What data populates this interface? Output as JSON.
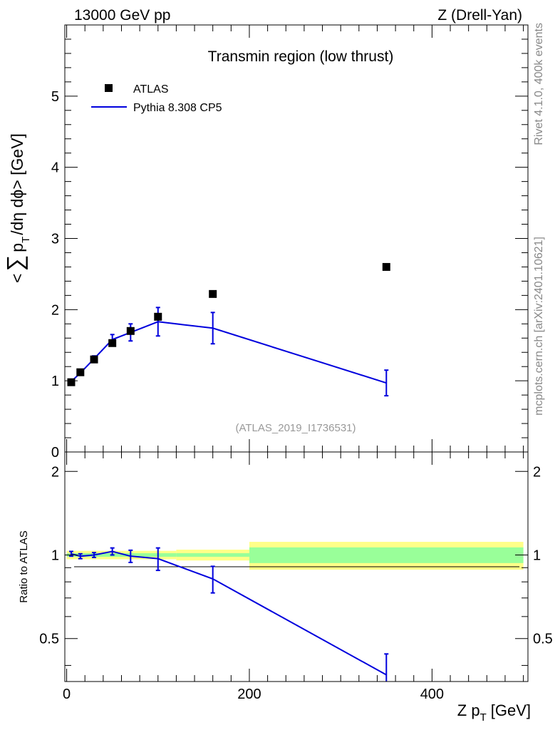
{
  "header": {
    "left": "13000 GeV pp",
    "right": "Z (Drell-Yan)"
  },
  "side": {
    "rivet": "Rivet 4.1.0,  400k events",
    "mcplots": "mcplots.cern.ch [arXiv:2401.10621]"
  },
  "colors": {
    "mc": "#0000dd",
    "data": "#000000",
    "band_inner": "#99ff99",
    "band_outer": "#ffff88"
  },
  "chart_data": [
    {
      "type": "scatter",
      "panel": "main",
      "title": "Transmin region (low thrust)",
      "ylabel_parts": [
        "<",
        "∑",
        "p",
        "T",
        "/dη dϕ> [GeV]"
      ],
      "analysis_id": "(ATLAS_2019_I1736531)",
      "xlim": [
        -2,
        505
      ],
      "ylim": [
        0,
        6
      ],
      "yticks": [
        0,
        1,
        2,
        3,
        4,
        5
      ],
      "ytick_labels": [
        "0",
        "1",
        "2",
        "3",
        "4",
        "5"
      ],
      "legend": [
        {
          "name": "ATLAS",
          "marker": "square"
        },
        {
          "name": "Pythia 8.308 CP5",
          "marker": "line"
        }
      ],
      "series": [
        {
          "name": "ATLAS",
          "x": [
            5,
            15,
            30,
            50,
            70,
            100,
            160,
            350
          ],
          "y": [
            0.98,
            1.12,
            1.3,
            1.53,
            1.7,
            1.9,
            2.22,
            2.6
          ]
        },
        {
          "name": "Pythia 8.308 CP5",
          "x": [
            5,
            15,
            30,
            50,
            70,
            100,
            160,
            350
          ],
          "y": [
            0.99,
            1.11,
            1.31,
            1.58,
            1.68,
            1.83,
            1.74,
            0.97
          ],
          "yerr": [
            0.03,
            0.03,
            0.04,
            0.07,
            0.12,
            0.2,
            0.22,
            0.18
          ]
        }
      ]
    },
    {
      "type": "line",
      "panel": "ratio",
      "ylabel": "Ratio to ATLAS",
      "xlabel": "Z p_T [GeV]",
      "xlabel_main": "Z p",
      "xlabel_sub": "T",
      "xlabel_unit": "[GeV]",
      "xlim": [
        -2,
        505
      ],
      "ylim": [
        0.35,
        2.35
      ],
      "xticks": [
        0,
        200,
        400
      ],
      "xtick_labels": [
        "0",
        "200",
        "400"
      ],
      "yticks": [
        0.5,
        1,
        2
      ],
      "ytick_labels": [
        "0.5",
        "1",
        "2"
      ],
      "bands": [
        {
          "x0": 0,
          "x1": 120,
          "inner": [
            0.985,
            1.015
          ],
          "outer": [
            0.965,
            1.035
          ]
        },
        {
          "x0": 120,
          "x1": 200,
          "inner": [
            0.985,
            1.015
          ],
          "outer": [
            0.955,
            1.045
          ]
        },
        {
          "x0": 200,
          "x1": 500,
          "inner": [
            0.935,
            1.065
          ],
          "outer": [
            0.885,
            1.115
          ]
        }
      ],
      "series": [
        {
          "name": "Pythia 8.308 CP5",
          "x": [
            5,
            15,
            30,
            50,
            70,
            100,
            160,
            350
          ],
          "y": [
            1.01,
            0.99,
            1.0,
            1.03,
            0.99,
            0.97,
            0.82,
            0.37
          ],
          "yerr": [
            0.02,
            0.02,
            0.02,
            0.03,
            0.05,
            0.09,
            0.09,
            0.07
          ]
        }
      ]
    }
  ]
}
